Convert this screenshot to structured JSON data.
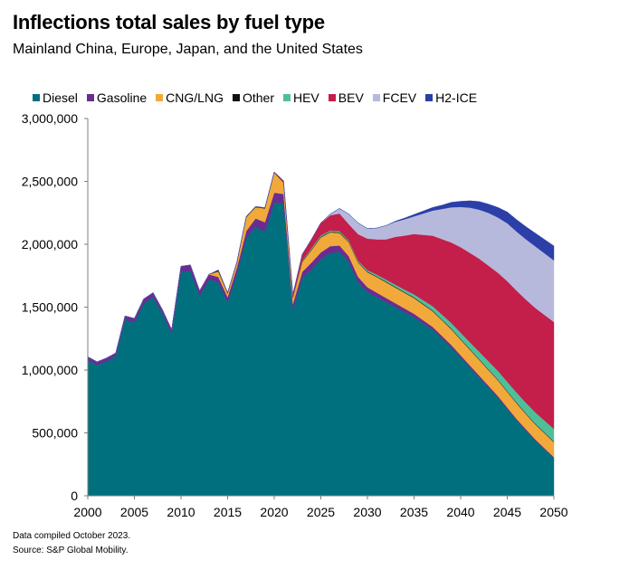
{
  "title": "Inflections total sales by fuel type",
  "subtitle": "Mainland China, Europe, Japan, and the United States",
  "notes": {
    "compiled": "Data compiled October 2023.",
    "source": "Source: S&P Global Mobility."
  },
  "chart_data": {
    "type": "area",
    "stacked": true,
    "title": "Inflections total sales by fuel type",
    "xlabel": "",
    "ylabel": "",
    "xlim": [
      2000,
      2050
    ],
    "ylim": [
      0,
      3000000
    ],
    "x_ticks": [
      2000,
      2005,
      2010,
      2015,
      2020,
      2025,
      2030,
      2035,
      2040,
      2045,
      2050
    ],
    "y_ticks": [
      0,
      500000,
      1000000,
      1500000,
      2000000,
      2500000,
      3000000
    ],
    "y_tick_labels": [
      "0",
      "500,000",
      "1,000,000",
      "1,500,000",
      "2,000,000",
      "2,500,000",
      "3,000,000"
    ],
    "grid": false,
    "legend_position": "top",
    "x": [
      2000,
      2001,
      2002,
      2003,
      2004,
      2005,
      2006,
      2007,
      2008,
      2009,
      2010,
      2011,
      2012,
      2013,
      2014,
      2015,
      2016,
      2017,
      2018,
      2019,
      2020,
      2021,
      2022,
      2023,
      2024,
      2025,
      2026,
      2027,
      2028,
      2029,
      2030,
      2031,
      2032,
      2033,
      2034,
      2035,
      2036,
      2037,
      2038,
      2039,
      2040,
      2041,
      2042,
      2043,
      2044,
      2045,
      2046,
      2047,
      2048,
      2049,
      2050
    ],
    "series": [
      {
        "name": "Diesel",
        "color": "#00707f",
        "values": [
          1080000,
          1040000,
          1070000,
          1110000,
          1400000,
          1380000,
          1530000,
          1580000,
          1450000,
          1290000,
          1780000,
          1790000,
          1590000,
          1720000,
          1700000,
          1540000,
          1770000,
          2050000,
          2140000,
          2100000,
          2330000,
          2330000,
          1480000,
          1730000,
          1800000,
          1880000,
          1930000,
          1940000,
          1860000,
          1700000,
          1620000,
          1580000,
          1540000,
          1500000,
          1460000,
          1420000,
          1370000,
          1320000,
          1250000,
          1180000,
          1100000,
          1020000,
          940000,
          860000,
          780000,
          690000,
          600000,
          520000,
          440000,
          370000,
          300000
        ]
      },
      {
        "name": "Gasoline",
        "color": "#6b2c91",
        "values": [
          25000,
          25000,
          25000,
          25000,
          30000,
          30000,
          35000,
          35000,
          30000,
          30000,
          45000,
          45000,
          40000,
          40000,
          40000,
          40000,
          45000,
          55000,
          65000,
          75000,
          80000,
          70000,
          45000,
          50000,
          55000,
          55000,
          55000,
          50000,
          45000,
          40000,
          38000,
          35000,
          33000,
          31000,
          29000,
          27000,
          25000,
          23000,
          21000,
          19000,
          17000,
          16000,
          15000,
          14000,
          13000,
          12000,
          11000,
          10000,
          9000,
          8000,
          7000
        ]
      },
      {
        "name": "CNG/LNG",
        "color": "#f2a93b",
        "values": [
          0,
          0,
          0,
          0,
          0,
          0,
          0,
          0,
          0,
          0,
          0,
          0,
          0,
          0,
          45000,
          30000,
          40000,
          110000,
          90000,
          110000,
          160000,
          90000,
          50000,
          80000,
          100000,
          120000,
          110000,
          100000,
          110000,
          115000,
          120000,
          125000,
          125000,
          125000,
          125000,
          125000,
          125000,
          125000,
          125000,
          125000,
          125000,
          125000,
          125000,
          125000,
          125000,
          125000,
          125000,
          120000,
          120000,
          120000,
          120000
        ]
      },
      {
        "name": "Other",
        "color": "#111111",
        "values": [
          0,
          0,
          0,
          0,
          0,
          0,
          0,
          0,
          0,
          0,
          0,
          0,
          0,
          0,
          10000,
          5000,
          5000,
          5000,
          5000,
          5000,
          5000,
          5000,
          5000,
          5000,
          5000,
          5000,
          5000,
          5000,
          5000,
          5000,
          5000,
          5000,
          5000,
          5000,
          5000,
          5000,
          5000,
          5000,
          5000,
          5000,
          5000,
          5000,
          5000,
          5000,
          5000,
          5000,
          5000,
          5000,
          5000,
          5000,
          5000
        ]
      },
      {
        "name": "HEV",
        "color": "#4fbf9a",
        "values": [
          0,
          0,
          0,
          0,
          0,
          0,
          0,
          0,
          0,
          0,
          0,
          0,
          0,
          0,
          0,
          0,
          0,
          0,
          0,
          0,
          0,
          0,
          0,
          5000,
          10000,
          10000,
          10000,
          10000,
          10000,
          10000,
          12000,
          14000,
          16000,
          18000,
          20000,
          25000,
          30000,
          35000,
          40000,
          45000,
          50000,
          55000,
          60000,
          65000,
          70000,
          75000,
          80000,
          85000,
          90000,
          95000,
          100000
        ]
      },
      {
        "name": "BEV",
        "color": "#c41e4a",
        "values": [
          0,
          0,
          0,
          0,
          0,
          0,
          0,
          0,
          0,
          0,
          0,
          0,
          0,
          0,
          0,
          0,
          0,
          0,
          0,
          0,
          0,
          10000,
          20000,
          50000,
          70000,
          100000,
          120000,
          140000,
          130000,
          210000,
          250000,
          280000,
          320000,
          380000,
          430000,
          480000,
          520000,
          560000,
          600000,
          640000,
          680000,
          710000,
          740000,
          760000,
          780000,
          800000,
          810000,
          820000,
          830000,
          840000,
          850000
        ]
      },
      {
        "name": "FCEV",
        "color": "#b7b9dc",
        "values": [
          0,
          0,
          0,
          0,
          0,
          0,
          0,
          0,
          0,
          0,
          0,
          0,
          0,
          0,
          0,
          0,
          0,
          0,
          0,
          0,
          0,
          0,
          0,
          0,
          0,
          0,
          10000,
          40000,
          80000,
          90000,
          80000,
          90000,
          110000,
          120000,
          130000,
          140000,
          170000,
          200000,
          240000,
          280000,
          320000,
          360000,
          390000,
          420000,
          440000,
          460000,
          470000,
          480000,
          490000,
          490000,
          490000
        ]
      },
      {
        "name": "H2-ICE",
        "color": "#2c3fa8",
        "values": [
          0,
          0,
          0,
          0,
          0,
          0,
          0,
          0,
          0,
          0,
          0,
          0,
          0,
          0,
          0,
          0,
          0,
          0,
          0,
          0,
          0,
          0,
          0,
          0,
          0,
          0,
          0,
          0,
          0,
          0,
          0,
          0,
          0,
          5000,
          10000,
          15000,
          20000,
          25000,
          30000,
          40000,
          45000,
          55000,
          65000,
          70000,
          80000,
          90000,
          95000,
          100000,
          105000,
          110000,
          115000
        ]
      }
    ]
  }
}
